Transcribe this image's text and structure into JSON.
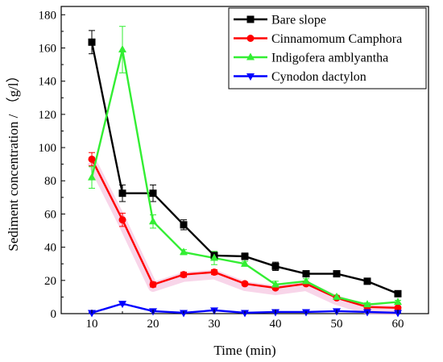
{
  "chart_data": {
    "type": "line",
    "title": "",
    "xlabel": "Time (min)",
    "ylabel": "Sediment concentration / （g/l）",
    "xlim": [
      5,
      65
    ],
    "ylim": [
      0,
      185
    ],
    "xticks": [
      10,
      20,
      30,
      40,
      50,
      60
    ],
    "yticks": [
      0,
      20,
      40,
      60,
      80,
      100,
      120,
      140,
      160,
      180
    ],
    "grid": false,
    "legend_position": "top-right",
    "x": [
      10,
      15,
      20,
      25,
      30,
      35,
      40,
      45,
      50,
      55,
      60
    ],
    "series": [
      {
        "name": "Bare slope",
        "color": "#000000",
        "marker": "square",
        "values": [
          163.5,
          72.5,
          72.5,
          53.5,
          35,
          34.5,
          28.5,
          24,
          24,
          19.5,
          12
        ],
        "errors": [
          7,
          5,
          5,
          3,
          2,
          2,
          2.5,
          1,
          1,
          1,
          1
        ]
      },
      {
        "name": "Cinnamomum Camphora",
        "color": "#ff0000",
        "marker": "circle",
        "values": [
          93,
          56.5,
          17.5,
          23.5,
          25,
          18,
          15.5,
          18,
          9.5,
          4,
          3.5
        ],
        "errors": [
          4,
          4,
          1.5,
          1.5,
          1.5,
          1,
          1,
          1,
          1,
          0.5,
          0.5
        ]
      },
      {
        "name": "Indigofera amblyantha",
        "color": "#33ee33",
        "marker": "triangle-up",
        "values": [
          82,
          159,
          55.5,
          37,
          33.5,
          30,
          17.5,
          19.5,
          10,
          5.5,
          7
        ],
        "errors": [
          6.5,
          14,
          4,
          1.5,
          4,
          1.5,
          2,
          1.5,
          1,
          1,
          1
        ]
      },
      {
        "name": "Cynodon dactylon",
        "color": "#0000ff",
        "marker": "triangle-down",
        "values": [
          0.5,
          6,
          1.5,
          0.5,
          2,
          0.5,
          1,
          1,
          1.5,
          1,
          0.5
        ],
        "errors": [
          0.3,
          0.8,
          0.3,
          0.2,
          0.3,
          0.2,
          0.2,
          0.2,
          0.2,
          0.2,
          0.2
        ]
      }
    ]
  }
}
